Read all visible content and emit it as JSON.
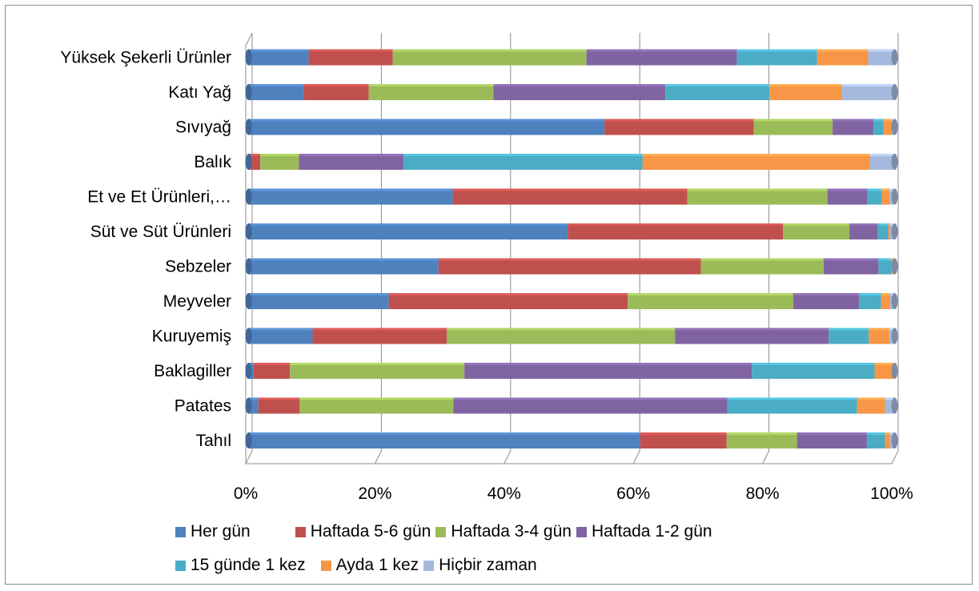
{
  "chart_data": {
    "type": "bar",
    "orientation": "horizontal",
    "stacked": "percent",
    "title": "",
    "xlabel": "",
    "ylabel": "",
    "xlim": [
      0,
      100
    ],
    "x_tick_labels": [
      "0%",
      "20%",
      "40%",
      "60%",
      "80%",
      "100%"
    ],
    "grid": true,
    "legend_position": "bottom",
    "categories": [
      "Yüksek Şekerli Ürünler",
      "Katı Yağ",
      "Sıvıyağ",
      "Balık",
      "Et ve Et Ürünleri,…",
      "Süt ve Süt Ürünleri",
      "Sebzeler",
      "Meyveler",
      "Kuruyemiş",
      "Baklagiller",
      "Patates",
      "Tahıl"
    ],
    "series": [
      {
        "name": "Her gün",
        "color": "#4f81bd",
        "values": [
          9.3,
          8.5,
          55.1,
          0.3,
          31.6,
          49.4,
          29.4,
          21.7,
          9.9,
          0.8,
          1.5,
          60.6
        ]
      },
      {
        "name": "Haftada 5-6 gün",
        "color": "#c0504d",
        "values": [
          13.0,
          10.1,
          23.1,
          1.5,
          36.3,
          33.3,
          40.6,
          37.0,
          20.8,
          5.6,
          6.4,
          13.4
        ]
      },
      {
        "name": "Haftada 3-4 gün",
        "color": "#9bbb59",
        "values": [
          30.0,
          19.3,
          12.2,
          6.0,
          21.7,
          10.3,
          19.0,
          25.6,
          35.3,
          27.0,
          23.8,
          10.9
        ]
      },
      {
        "name": "Haftada 1-2 gün",
        "color": "#8064a2",
        "values": [
          23.3,
          26.6,
          6.3,
          16.2,
          6.2,
          4.4,
          8.5,
          10.2,
          23.8,
          44.5,
          42.4,
          10.8
        ]
      },
      {
        "name": "15 günde 1 kez",
        "color": "#4bacc6",
        "values": [
          12.4,
          16.1,
          1.6,
          37.0,
          2.2,
          1.6,
          2.0,
          3.4,
          6.2,
          19.0,
          20.1,
          2.8
        ]
      },
      {
        "name": "Ayda 1 kez",
        "color": "#f79646",
        "values": [
          7.9,
          11.2,
          1.3,
          35.2,
          1.2,
          0.3,
          0.3,
          1.4,
          3.2,
          2.9,
          4.3,
          0.8
        ]
      },
      {
        "name": "Hiçbir zaman",
        "color": "#a5b9dd",
        "values": [
          4.1,
          8.2,
          0.4,
          3.8,
          0.8,
          0.7,
          0.2,
          0.7,
          0.8,
          0.2,
          1.5,
          0.7
        ]
      }
    ]
  }
}
